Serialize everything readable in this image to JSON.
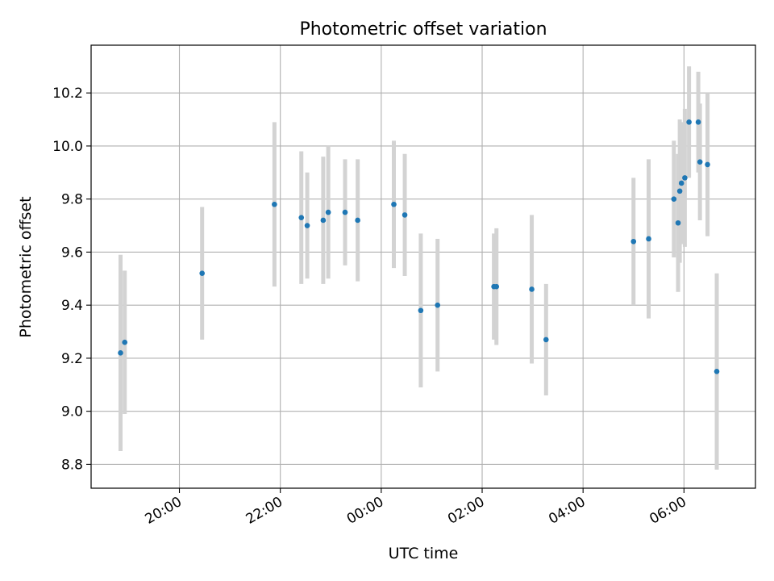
{
  "chart_data": {
    "type": "scatter",
    "title": "Photometric offset variation",
    "xlabel": "UTC time",
    "ylabel": "Photometric offset",
    "x_unit": "hours UTC (24+ = following day)",
    "xlim": [
      "18:15",
      "07:25"
    ],
    "ylim": [
      8.71,
      10.38
    ],
    "grid": true,
    "colors": {
      "points": "#1f77b4",
      "error_bars": "#d3d3d3",
      "grid": "#b0b0b0"
    },
    "x_ticks": [
      {
        "time": "20:00",
        "label": "20:00"
      },
      {
        "time": "22:00",
        "label": "22:00"
      },
      {
        "time": "00:00",
        "label": "00:00"
      },
      {
        "time": "02:00",
        "label": "02:00"
      },
      {
        "time": "04:00",
        "label": "04:00"
      },
      {
        "time": "06:00",
        "label": "06:00"
      }
    ],
    "y_ticks": [
      {
        "value": 8.8,
        "label": "8.8"
      },
      {
        "value": 9.0,
        "label": "9.0"
      },
      {
        "value": 9.2,
        "label": "9.2"
      },
      {
        "value": 9.4,
        "label": "9.4"
      },
      {
        "value": 9.6,
        "label": "9.6"
      },
      {
        "value": 9.8,
        "label": "9.8"
      },
      {
        "value": 10.0,
        "label": "10.0"
      },
      {
        "value": 10.2,
        "label": "10.2"
      }
    ],
    "points": [
      {
        "time": "18:50",
        "y": 9.22,
        "yerr": 0.37
      },
      {
        "time": "18:55",
        "y": 9.26,
        "yerr": 0.27
      },
      {
        "time": "20:27",
        "y": 9.52,
        "yerr": 0.25
      },
      {
        "time": "21:53",
        "y": 9.78,
        "yerr": 0.31
      },
      {
        "time": "22:25",
        "y": 9.73,
        "yerr": 0.25
      },
      {
        "time": "22:32",
        "y": 9.7,
        "yerr": 0.2
      },
      {
        "time": "22:51",
        "y": 9.72,
        "yerr": 0.24
      },
      {
        "time": "22:57",
        "y": 9.75,
        "yerr": 0.25
      },
      {
        "time": "23:17",
        "y": 9.75,
        "yerr": 0.2
      },
      {
        "time": "23:32",
        "y": 9.72,
        "yerr": 0.23
      },
      {
        "time": "00:15",
        "y": 9.78,
        "yerr": 0.24
      },
      {
        "time": "00:28",
        "y": 9.74,
        "yerr": 0.23
      },
      {
        "time": "00:47",
        "y": 9.38,
        "yerr": 0.29
      },
      {
        "time": "01:07",
        "y": 9.4,
        "yerr": 0.25
      },
      {
        "time": "02:14",
        "y": 9.47,
        "yerr": 0.2
      },
      {
        "time": "02:17",
        "y": 9.47,
        "yerr": 0.22
      },
      {
        "time": "02:59",
        "y": 9.46,
        "yerr": 0.28
      },
      {
        "time": "03:16",
        "y": 9.27,
        "yerr": 0.21
      },
      {
        "time": "05:00",
        "y": 9.64,
        "yerr": 0.24
      },
      {
        "time": "05:18",
        "y": 9.65,
        "yerr": 0.3
      },
      {
        "time": "05:48",
        "y": 9.8,
        "yerr": 0.22
      },
      {
        "time": "05:53",
        "y": 9.71,
        "yerr": 0.26
      },
      {
        "time": "05:55",
        "y": 9.83,
        "yerr": 0.27
      },
      {
        "time": "05:57",
        "y": 9.86,
        "yerr": 0.23
      },
      {
        "time": "06:01",
        "y": 9.88,
        "yerr": 0.26
      },
      {
        "time": "06:06",
        "y": 10.09,
        "yerr": 0.21
      },
      {
        "time": "06:17",
        "y": 10.09,
        "yerr": 0.19
      },
      {
        "time": "06:19",
        "y": 9.94,
        "yerr": 0.22
      },
      {
        "time": "06:28",
        "y": 9.93,
        "yerr": 0.27
      },
      {
        "time": "06:39",
        "y": 9.15,
        "yerr": 0.37
      }
    ]
  }
}
